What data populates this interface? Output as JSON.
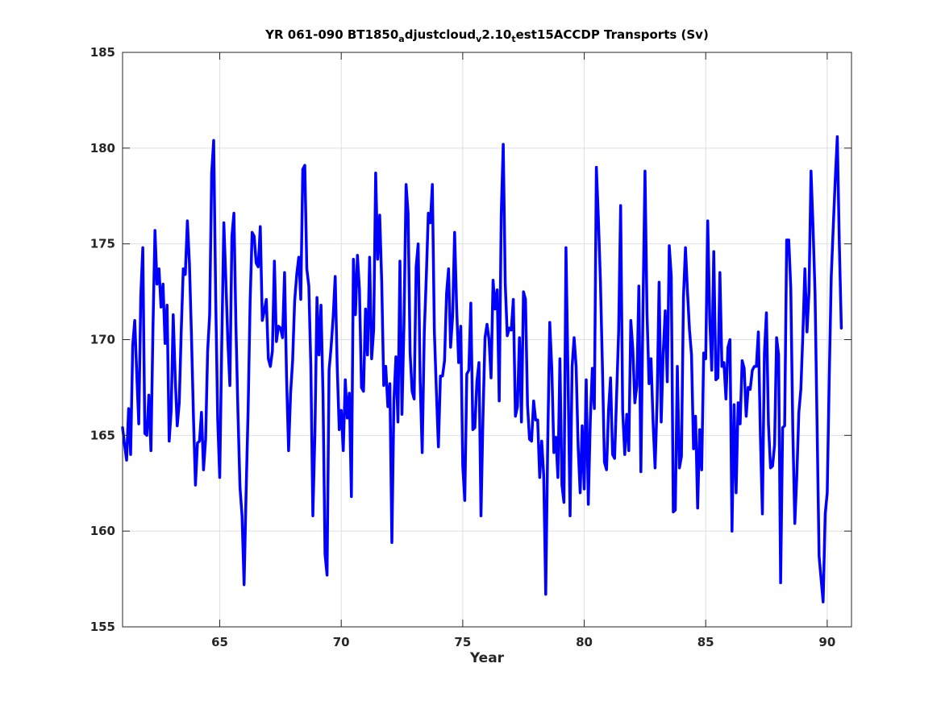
{
  "chart_data": {
    "type": "line",
    "title": {
      "parts": [
        {
          "text": "YR 061-090 BT1850",
          "sub": false
        },
        {
          "text": "a",
          "sub": true
        },
        {
          "text": "djustcloud",
          "sub": false
        },
        {
          "text": "v",
          "sub": true
        },
        {
          "text": "2.10",
          "sub": false
        },
        {
          "text": "t",
          "sub": true
        },
        {
          "text": "est15ACCDP Transports (Sv)",
          "sub": false
        }
      ]
    },
    "xlabel": "Year",
    "ylabel": "",
    "xlim": [
      61,
      91
    ],
    "ylim": [
      155,
      185
    ],
    "xticks": [
      65,
      70,
      75,
      80,
      85,
      90
    ],
    "yticks": [
      155,
      160,
      165,
      170,
      175,
      180,
      185
    ],
    "grid": true,
    "line_color": "#0000ff",
    "x_start": 61.0,
    "x_step": 0.0833333,
    "series": [
      {
        "values": [
          165.4,
          164.5,
          163.7,
          166.4,
          164.0,
          169.7,
          171.0,
          168.2,
          165.6,
          172.3,
          174.8,
          165.1,
          165.0,
          167.1,
          164.2,
          170.6,
          175.7,
          172.9,
          173.7,
          171.7,
          172.9,
          169.8,
          171.8,
          164.7,
          166.3,
          171.3,
          168.0,
          165.5,
          166.7,
          170.5,
          173.7,
          173.4,
          176.2,
          174.0,
          170.3,
          166.0,
          162.4,
          164.6,
          164.7,
          166.2,
          163.2,
          164.8,
          169.4,
          171.3,
          178.7,
          180.4,
          172.2,
          165.8,
          162.8,
          169.7,
          176.1,
          173.1,
          169.9,
          167.6,
          175.4,
          176.6,
          170.7,
          166.2,
          162.3,
          160.8,
          157.2,
          162.0,
          166.3,
          172.0,
          175.6,
          175.4,
          174.0,
          173.8,
          175.9,
          171.0,
          171.5,
          172.1,
          169.0,
          168.6,
          169.4,
          174.1,
          169.9,
          170.7,
          170.6,
          170.1,
          173.5,
          168.0,
          164.2,
          167.2,
          168.9,
          172.0,
          173.4,
          174.3,
          172.1,
          178.9,
          179.1,
          173.7,
          172.8,
          168.6,
          160.8,
          165.2,
          172.2,
          169.2,
          171.8,
          167.1,
          158.8,
          157.7,
          168.4,
          169.6,
          171.2,
          173.3,
          168.6,
          165.3,
          166.3,
          164.2,
          167.9,
          165.9,
          167.2,
          161.8,
          174.2,
          171.3,
          174.4,
          172.6,
          167.5,
          167.3,
          171.6,
          169.2,
          174.3,
          169.0,
          170.5,
          178.7,
          174.2,
          176.5,
          173.0,
          167.6,
          168.6,
          166.5,
          167.7,
          159.4,
          166.8,
          169.1,
          165.7,
          174.1,
          166.1,
          170.8,
          178.1,
          176.6,
          169.3,
          167.3,
          166.9,
          173.8,
          175.0,
          167.8,
          164.1,
          170.4,
          173.3,
          176.6,
          176.1,
          178.1,
          170.4,
          167.3,
          164.4,
          168.1,
          168.1,
          168.9,
          172.4,
          173.7,
          169.6,
          171.2,
          175.6,
          171.7,
          168.8,
          170.7,
          163.4,
          161.6,
          168.2,
          168.4,
          171.9,
          165.3,
          165.4,
          167.8,
          168.8,
          160.8,
          166.0,
          170.1,
          170.8,
          170.0,
          168.0,
          173.1,
          171.6,
          172.6,
          166.8,
          176.5,
          180.2,
          172.9,
          170.2,
          170.6,
          170.5,
          172.1,
          166.0,
          166.5,
          170.1,
          165.7,
          172.5,
          172.1,
          166.6,
          164.8,
          164.7,
          166.8,
          165.8,
          165.8,
          162.8,
          164.7,
          162.9,
          156.7,
          164.7,
          170.9,
          168.4,
          164.1,
          164.9,
          162.8,
          169.0,
          162.4,
          161.5,
          174.8,
          168.2,
          160.8,
          168.6,
          170.1,
          168.6,
          164.4,
          162.0,
          165.5,
          162.2,
          167.9,
          161.4,
          165.8,
          168.5,
          166.4,
          179.0,
          176.3,
          173.1,
          168.6,
          163.6,
          163.2,
          166.3,
          168.0,
          164.0,
          163.8,
          167.1,
          170.4,
          177.0,
          166.3,
          164.0,
          166.1,
          164.2,
          171.0,
          169.5,
          166.7,
          167.6,
          172.8,
          163.1,
          171.6,
          178.8,
          171.4,
          167.7,
          169.0,
          165.7,
          163.3,
          166.7,
          173.0,
          165.7,
          169.3,
          171.5,
          167.8,
          174.9,
          173.3,
          161.0,
          161.1,
          168.6,
          163.3,
          163.9,
          172.2,
          174.8,
          172.5,
          170.5,
          169.2,
          164.3,
          166.0,
          161.2,
          165.3,
          163.2,
          169.3,
          169.0,
          176.2,
          171.1,
          168.4,
          174.6,
          167.9,
          168.0,
          173.5,
          168.6,
          168.8,
          166.9,
          169.6,
          170.0,
          160.0,
          166.6,
          162.0,
          166.7,
          165.6,
          168.9,
          168.5,
          166.0,
          167.5,
          167.4,
          168.4,
          168.6,
          168.6,
          170.4,
          165.0,
          160.9,
          169.3,
          171.4,
          165.6,
          163.3,
          163.4,
          164.5,
          170.1,
          169.2,
          157.3,
          165.4,
          165.5,
          175.2,
          175.2,
          172.7,
          165.3,
          160.4,
          162.9,
          166.2,
          167.4,
          170.3,
          173.7,
          170.4,
          172.5,
          178.8,
          175.9,
          172.4,
          165.6,
          158.7,
          157.5,
          156.3,
          160.9,
          162.0,
          168.0,
          173.3,
          175.9,
          178.4,
          180.6,
          175.0,
          170.6
        ]
      }
    ]
  }
}
